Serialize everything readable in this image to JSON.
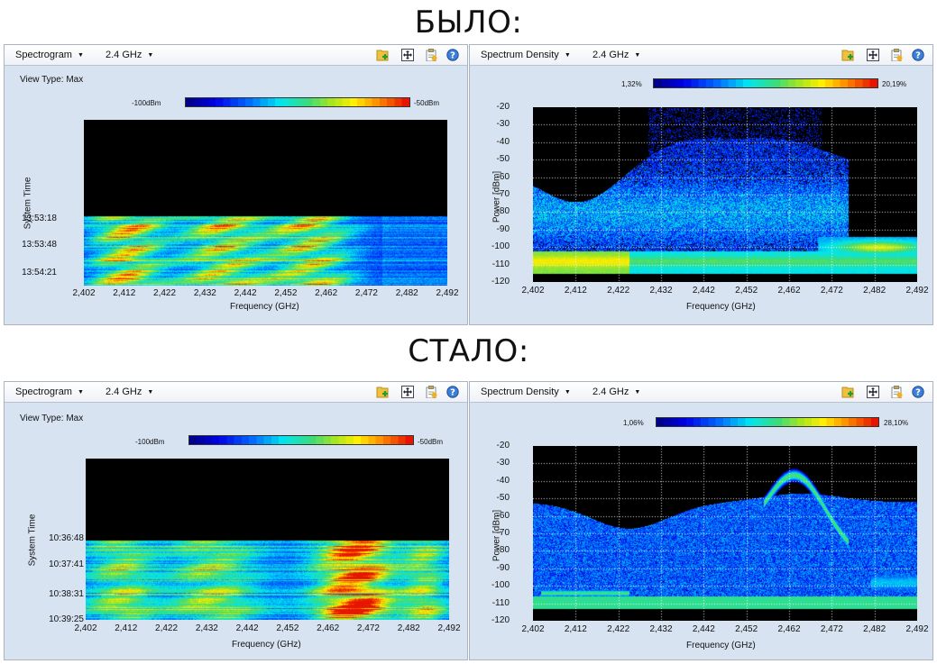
{
  "headings": {
    "before": "БЫЛО:",
    "after": "СТАЛО:"
  },
  "toolbar_icons": [
    "add-chart-icon",
    "move-icon",
    "clipboard-icon",
    "help-icon"
  ],
  "colors": {
    "panel_bg": "#d7e3f1",
    "plot_bg": "#000000",
    "grid": "#ffffff"
  },
  "panels": {
    "before_spectrogram": {
      "mode": "Spectrogram",
      "band": "2.4 GHz",
      "view_type": "View Type: Max",
      "legend_min": "-100dBm",
      "legend_max": "-50dBm",
      "y_title": "System Time",
      "x_title": "Frequency (GHz)",
      "x_ticks": [
        "2,402",
        "2,412",
        "2,422",
        "2,432",
        "2,442",
        "2,452",
        "2,462",
        "2,472",
        "2,482",
        "2,492"
      ],
      "time_ticks": [
        "13:53:18",
        "13:53:48",
        "13:54:21"
      ]
    },
    "before_density": {
      "mode": "Spectrum Density",
      "band": "2.4 GHz",
      "legend_min": "1,32%",
      "legend_max": "20,19%",
      "y_title": "Power [dBm]",
      "x_title": "Frequency (GHz)",
      "x_ticks": [
        "2,402",
        "2,412",
        "2,422",
        "2,432",
        "2,442",
        "2,452",
        "2,462",
        "2,472",
        "2,482",
        "2,492"
      ],
      "y_ticks": [
        "-20",
        "-30",
        "-40",
        "-50",
        "-60",
        "-70",
        "-80",
        "-90",
        "-100",
        "-110",
        "-120"
      ]
    },
    "after_spectrogram": {
      "mode": "Spectrogram",
      "band": "2.4 GHz",
      "view_type": "View Type: Max",
      "legend_min": "-100dBm",
      "legend_max": "-50dBm",
      "y_title": "System Time",
      "x_title": "Frequency (GHz)",
      "x_ticks": [
        "2,402",
        "2,412",
        "2,422",
        "2,432",
        "2,442",
        "2,452",
        "2,462",
        "2,472",
        "2,482",
        "2,492"
      ],
      "time_ticks": [
        "10:36:48",
        "10:37:41",
        "10:38:31",
        "10:39:25"
      ]
    },
    "after_density": {
      "mode": "Spectrum Density",
      "band": "2.4 GHz",
      "legend_min": "1,06%",
      "legend_max": "28,10%",
      "y_title": "Power [dBm]",
      "x_title": "Frequency (GHz)",
      "x_ticks": [
        "2,402",
        "2,412",
        "2,422",
        "2,432",
        "2,442",
        "2,452",
        "2,462",
        "2,472",
        "2,482",
        "2,492"
      ],
      "y_ticks": [
        "-20",
        "-30",
        "-40",
        "-50",
        "-60",
        "-70",
        "-80",
        "-90",
        "-100",
        "-110",
        "-120"
      ]
    }
  }
}
